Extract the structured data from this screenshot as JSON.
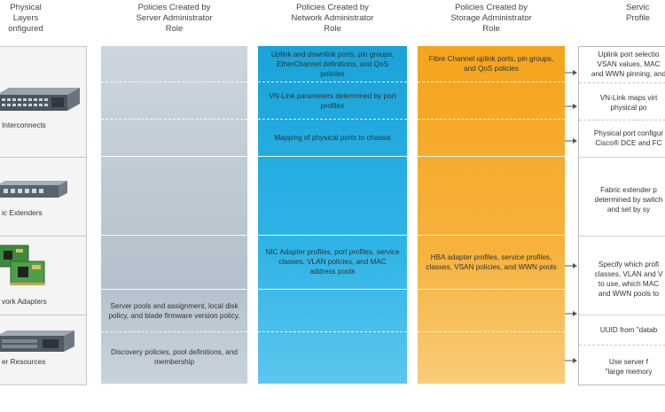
{
  "headers": {
    "layers": "Physical\nLayers\nonfigured",
    "server": "Policies Created by\nServer Administrator\nRole",
    "network": "Policies Created by\nNetwork Administrator\nRole",
    "storage": "Policies Created by\nStorage Administrator\nRole",
    "service": "Servic\nProfile"
  },
  "layers": [
    "Interconnects",
    "ic Extenders",
    "vork Adapters",
    "er Resources"
  ],
  "server": {
    "pools": "Server pools and assignment, local disk policy, and blade firmware version policy.",
    "discovery": "Discovery policies, pool definitions, and membership"
  },
  "network": {
    "uplink": "Uplink and downlink ports, pin groups, EtherChannel definitions, and QoS policies",
    "vnlink": "VN-Link parameters determined by port profiles",
    "mapping": "Mapping of physical ports to chassis",
    "nic": "NIC Adapter profiles, port profiles, service classes, VLAN policies, and MAC address pools"
  },
  "storage": {
    "fc": "Fibre Channel uplink ports, pin groups, and QoS policies",
    "hba": "HBA adapter profiles, service profiles, classes, VSAN policies, and WWN pools"
  },
  "service": {
    "s1": "Uplink port selectio\nVSAN values, MAC\nand WWN pinning, and",
    "s2": "VN-Link maps virt\nphysical po",
    "s3": "Physical port configur\nCisco® DCE and FC",
    "s4": "Fabric extender p\ndetermined by switch\nand set by sy",
    "s5": "Specify which profi\nclasses, VLAN and V\nto use, which MAC\nand WWN pools to",
    "s6": "UUID from \"datab",
    "s7": "Use server f\n\"large memory"
  }
}
